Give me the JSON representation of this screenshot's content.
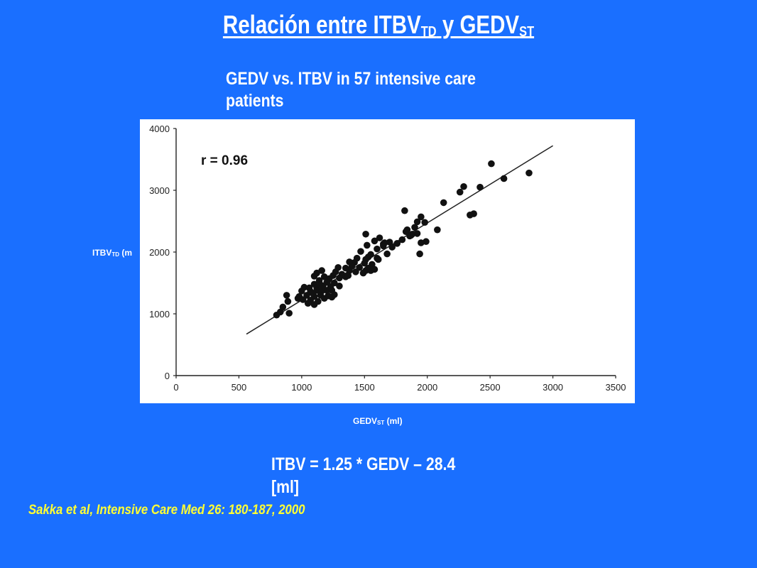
{
  "slide": {
    "title_main": "Relación entre ITBV",
    "title_sub1": "TD",
    "title_mid": " y GEDV",
    "title_sub2": "ST",
    "subtitle": "GEDV vs. ITBV in 57 intensive care patients",
    "ylabel_main": "ITBV",
    "ylabel_sub": "TD",
    "ylabel_rest": " (m",
    "xlabel_main": "GEDV",
    "xlabel_sub": "ST",
    "xlabel_rest": " (ml)",
    "formula": "ITBV = 1.25 * GEDV – 28.4 [ml]",
    "citation": "Sakka et al, Intensive Care Med 26: 180-187, 2000",
    "text_color": "#ffffff",
    "citation_color": "#ffff33",
    "background": "#1a6fff"
  },
  "chart_data": {
    "type": "scatter",
    "r_label": "r = 0.96",
    "xlim": [
      0,
      3500
    ],
    "ylim": [
      0,
      4000
    ],
    "x_ticks": [
      "0",
      "500",
      "1000",
      "1500",
      "2000",
      "2500",
      "3000",
      "3500"
    ],
    "y_ticks": [
      "0",
      "1000",
      "2000",
      "3000",
      "4000"
    ],
    "regression": {
      "slope": 1.25,
      "intercept": -28.4,
      "x_range": [
        560,
        3000
      ]
    },
    "points": [
      [
        2510,
        3430
      ],
      [
        2810,
        3280
      ],
      [
        2610,
        3190
      ],
      [
        2290,
        3060
      ],
      [
        2420,
        3050
      ],
      [
        2260,
        2970
      ],
      [
        2130,
        2800
      ],
      [
        2370,
        2620
      ],
      [
        2340,
        2600
      ],
      [
        1820,
        2670
      ],
      [
        1950,
        2570
      ],
      [
        1980,
        2480
      ],
      [
        1920,
        2490
      ],
      [
        1900,
        2400
      ],
      [
        2080,
        2360
      ],
      [
        1840,
        2360
      ],
      [
        1830,
        2330
      ],
      [
        1920,
        2300
      ],
      [
        1880,
        2290
      ],
      [
        1860,
        2260
      ],
      [
        1990,
        2170
      ],
      [
        1800,
        2200
      ],
      [
        1700,
        2160
      ],
      [
        1660,
        2150
      ],
      [
        1940,
        1970
      ],
      [
        1510,
        2290
      ],
      [
        1620,
        2230
      ],
      [
        1580,
        2180
      ],
      [
        1650,
        2130
      ],
      [
        1520,
        2110
      ],
      [
        1600,
        2050
      ],
      [
        1680,
        1970
      ],
      [
        1550,
        1960
      ],
      [
        1470,
        2010
      ],
      [
        1530,
        1920
      ],
      [
        1600,
        1900
      ],
      [
        1510,
        1880
      ],
      [
        1440,
        1900
      ],
      [
        1420,
        1830
      ],
      [
        1380,
        1840
      ],
      [
        1500,
        1820
      ],
      [
        1560,
        1800
      ],
      [
        1400,
        1770
      ],
      [
        1460,
        1750
      ],
      [
        1530,
        1740
      ],
      [
        1350,
        1740
      ],
      [
        1290,
        1750
      ],
      [
        1270,
        1680
      ],
      [
        1380,
        1700
      ],
      [
        1430,
        1680
      ],
      [
        1490,
        1660
      ],
      [
        1510,
        1700
      ],
      [
        1320,
        1640
      ],
      [
        1250,
        1620
      ],
      [
        1160,
        1700
      ],
      [
        1120,
        1660
      ],
      [
        1100,
        1610
      ],
      [
        1180,
        1600
      ],
      [
        1220,
        1570
      ],
      [
        1300,
        1580
      ],
      [
        1350,
        1600
      ],
      [
        1370,
        1620
      ],
      [
        1140,
        1540
      ],
      [
        1200,
        1510
      ],
      [
        1260,
        1500
      ],
      [
        1100,
        1480
      ],
      [
        1150,
        1470
      ],
      [
        1020,
        1430
      ],
      [
        1060,
        1420
      ],
      [
        1120,
        1420
      ],
      [
        1170,
        1450
      ],
      [
        1230,
        1440
      ],
      [
        1300,
        1450
      ],
      [
        1000,
        1370
      ],
      [
        1070,
        1360
      ],
      [
        1120,
        1380
      ],
      [
        1160,
        1370
      ],
      [
        1200,
        1380
      ],
      [
        1240,
        1380
      ],
      [
        980,
        1280
      ],
      [
        1040,
        1300
      ],
      [
        1100,
        1280
      ],
      [
        1150,
        1300
      ],
      [
        1210,
        1290
      ],
      [
        1070,
        1220
      ],
      [
        1130,
        1200
      ],
      [
        1180,
        1250
      ],
      [
        1240,
        1270
      ],
      [
        970,
        1250
      ],
      [
        1010,
        1230
      ],
      [
        1050,
        1170
      ],
      [
        1100,
        1150
      ],
      [
        880,
        1300
      ],
      [
        890,
        1200
      ],
      [
        800,
        980
      ],
      [
        830,
        1030
      ],
      [
        850,
        1110
      ],
      [
        900,
        1010
      ],
      [
        1550,
        1700
      ],
      [
        1610,
        1880
      ],
      [
        1580,
        1720
      ],
      [
        1090,
        1330
      ],
      [
        1260,
        1310
      ],
      [
        1650,
        2100
      ],
      [
        1760,
        2140
      ],
      [
        1720,
        2080
      ],
      [
        1950,
        2150
      ],
      [
        1870,
        2270
      ]
    ]
  }
}
